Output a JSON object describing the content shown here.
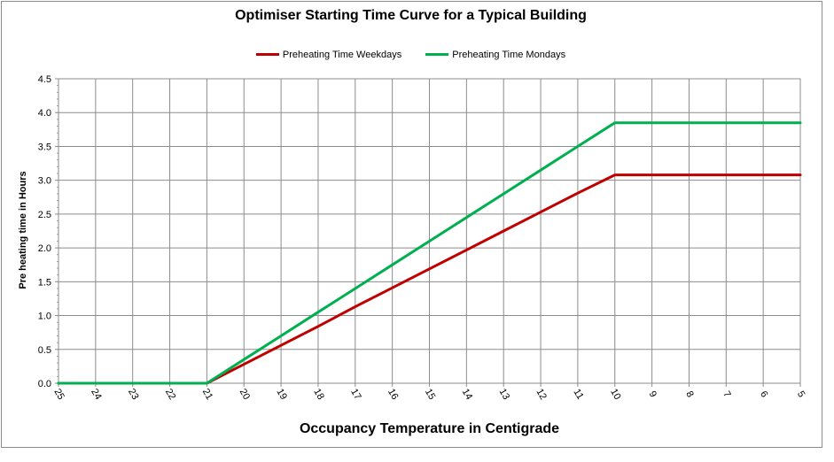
{
  "chart_data": {
    "type": "line",
    "title": "Optimiser Starting Time Curve for a Typical Building",
    "xlabel": "Occupancy Temperature in Centigrade",
    "ylabel": "Pre heating time in Hours",
    "x_reversed": true,
    "xlim": [
      25,
      5
    ],
    "ylim": [
      0,
      4.5
    ],
    "x_ticks": [
      25,
      24,
      23,
      22,
      21,
      20,
      19,
      18,
      17,
      16,
      15,
      14,
      13,
      12,
      11,
      10,
      9,
      8,
      7,
      6,
      5
    ],
    "y_ticks": [
      "0.0",
      "0.5",
      "1.0",
      "1.5",
      "2.0",
      "2.5",
      "3.0",
      "3.5",
      "4.0",
      "4.5"
    ],
    "grid": true,
    "legend_position": "top",
    "series": [
      {
        "name": "Preheating Time Weekdays",
        "color": "#c00000",
        "points": [
          [
            25,
            0
          ],
          [
            21,
            0
          ],
          [
            20,
            0.28
          ],
          [
            19,
            0.56
          ],
          [
            18,
            0.84
          ],
          [
            17,
            1.13
          ],
          [
            16,
            1.41
          ],
          [
            15,
            1.69
          ],
          [
            14,
            1.97
          ],
          [
            13,
            2.25
          ],
          [
            12,
            2.53
          ],
          [
            11,
            2.81
          ],
          [
            10,
            3.08
          ],
          [
            5,
            3.08
          ]
        ]
      },
      {
        "name": "Preheating Time Mondays",
        "color": "#00b050",
        "points": [
          [
            25,
            0
          ],
          [
            21,
            0
          ],
          [
            20,
            0.35
          ],
          [
            19,
            0.7
          ],
          [
            18,
            1.05
          ],
          [
            17,
            1.4
          ],
          [
            16,
            1.75
          ],
          [
            15,
            2.1
          ],
          [
            14,
            2.45
          ],
          [
            13,
            2.8
          ],
          [
            12,
            3.15
          ],
          [
            11,
            3.5
          ],
          [
            10,
            3.85
          ],
          [
            5,
            3.85
          ]
        ]
      }
    ]
  }
}
